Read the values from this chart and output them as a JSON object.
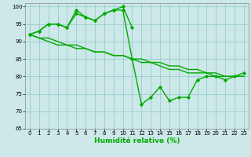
{
  "x": [
    0,
    1,
    2,
    3,
    4,
    5,
    6,
    7,
    8,
    9,
    10,
    11,
    12,
    13,
    14,
    15,
    16,
    17,
    18,
    19,
    20,
    21,
    22,
    23
  ],
  "line_jagged": [
    92,
    93,
    95,
    95,
    94,
    98,
    97,
    96,
    98,
    99,
    99,
    85,
    72,
    74,
    77,
    73,
    74,
    74,
    79,
    80,
    80,
    79,
    80,
    81
  ],
  "line_upper_x": [
    0,
    1,
    2,
    3,
    4,
    5,
    6,
    7,
    8,
    9,
    10,
    11
  ],
  "line_upper_y": [
    92,
    93,
    95,
    95,
    94,
    99,
    97,
    96,
    98,
    99,
    100,
    94
  ],
  "line_smooth1": [
    92,
    91,
    90,
    89,
    89,
    88,
    88,
    87,
    87,
    86,
    86,
    85,
    85,
    84,
    84,
    83,
    83,
    82,
    82,
    81,
    81,
    80,
    80,
    80
  ],
  "line_smooth2": [
    92,
    91,
    91,
    90,
    89,
    89,
    88,
    87,
    87,
    86,
    86,
    85,
    84,
    84,
    83,
    82,
    82,
    81,
    81,
    81,
    80,
    80,
    80,
    80
  ],
  "line_color": "#00aa00",
  "bg_color": "#cce8e8",
  "grid_color": "#99cccc",
  "xlabel": "Humidité relative (%)",
  "ylim": [
    65,
    101
  ],
  "yticks": [
    65,
    70,
    75,
    80,
    85,
    90,
    95,
    100
  ],
  "xlim": [
    -0.5,
    23.5
  ],
  "xticks": [
    0,
    1,
    2,
    3,
    4,
    5,
    6,
    7,
    8,
    9,
    10,
    11,
    12,
    13,
    14,
    15,
    16,
    17,
    18,
    19,
    20,
    21,
    22,
    23
  ],
  "marker": "D",
  "marker_size": 2.2,
  "linewidth": 1.0,
  "tick_fontsize": 5.0,
  "xlabel_fontsize": 6.5
}
